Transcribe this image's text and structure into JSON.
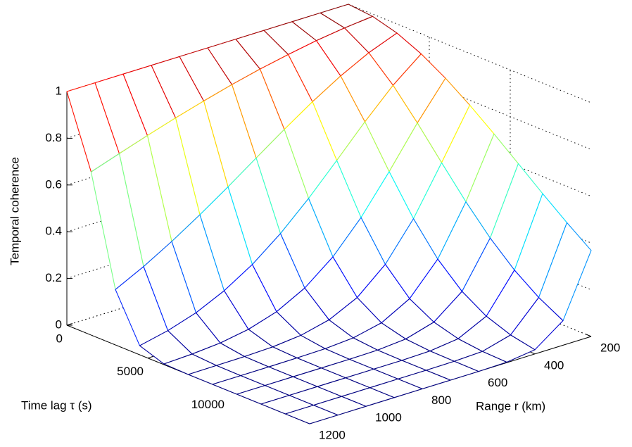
{
  "chart_data": {
    "type": "mesh",
    "xlabel": "Time lag τ (s)",
    "ylabel": "Range r (km)",
    "zlabel": "Temporal coherence",
    "colormap": "jet",
    "grid": true,
    "x": [
      0,
      1500,
      3000,
      4500,
      6000,
      7500,
      9000,
      10500,
      12000,
      13500,
      15000
    ],
    "y": [
      200,
      300,
      400,
      500,
      600,
      700,
      800,
      900,
      1000,
      1100,
      1200
    ],
    "z": [
      [
        1,
        1,
        1,
        1,
        1,
        1,
        1,
        1,
        1,
        1,
        1
      ],
      [
        0.99,
        0.978,
        0.961,
        0.939,
        0.914,
        0.885,
        0.852,
        0.817,
        0.779,
        0.739,
        0.698
      ],
      [
        0.961,
        0.914,
        0.852,
        0.779,
        0.698,
        0.613,
        0.527,
        0.445,
        0.368,
        0.298,
        0.237
      ],
      [
        0.914,
        0.817,
        0.698,
        0.57,
        0.445,
        0.332,
        0.237,
        0.162,
        0.105,
        0.066,
        0.039
      ],
      [
        0.852,
        0.698,
        0.527,
        0.368,
        0.237,
        0.141,
        0.077,
        0.039,
        0.018,
        0.008,
        0.003
      ],
      [
        0.779,
        0.57,
        0.368,
        0.21,
        0.105,
        0.047,
        0.018,
        0.006,
        0.002,
        0.001,
        0
      ],
      [
        0.698,
        0.445,
        0.237,
        0.105,
        0.039,
        0.012,
        0.003,
        0.001,
        0,
        0,
        0
      ],
      [
        0.613,
        0.332,
        0.141,
        0.047,
        0.012,
        0.002,
        0,
        0,
        0,
        0,
        0
      ],
      [
        0.527,
        0.237,
        0.077,
        0.018,
        0.003,
        0,
        0,
        0,
        0,
        0,
        0
      ],
      [
        0.445,
        0.162,
        0.039,
        0.006,
        0.001,
        0,
        0,
        0,
        0,
        0,
        0
      ],
      [
        0.368,
        0.105,
        0.018,
        0.002,
        0,
        0,
        0,
        0,
        0,
        0,
        0
      ]
    ],
    "xlim": [
      0,
      15000
    ],
    "xticks": [
      0,
      5000,
      10000
    ],
    "ylim": [
      200,
      1200
    ],
    "yticks": [
      200,
      400,
      600,
      800,
      1000,
      1200
    ],
    "zlim": [
      0,
      1
    ],
    "zticks": [
      0,
      0.2,
      0.4,
      0.6,
      0.8,
      1
    ]
  }
}
